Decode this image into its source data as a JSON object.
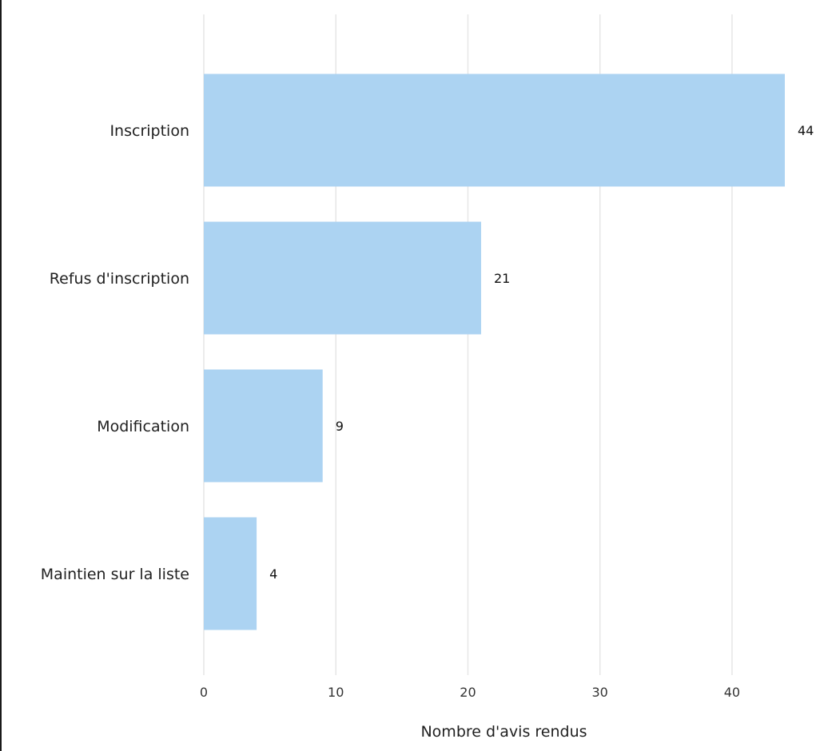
{
  "chart_data": {
    "type": "bar",
    "orientation": "horizontal",
    "categories": [
      "Inscription",
      "Refus d'inscription",
      "Modification",
      "Maintien sur la liste"
    ],
    "values": [
      44,
      21,
      9,
      4
    ],
    "xlabel": "Nombre d'avis rendus",
    "ylabel": "",
    "xlim": [
      0,
      44
    ],
    "xticks": [
      0,
      10,
      20,
      30,
      40
    ],
    "grid": "vertical",
    "legend": "none",
    "bar_color": "#acd3f2"
  }
}
